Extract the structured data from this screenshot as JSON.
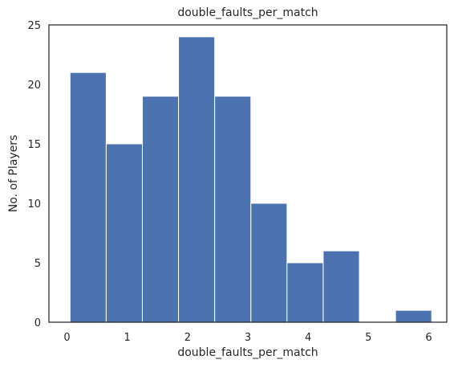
{
  "chart_data": {
    "type": "bar",
    "title": "double_faults_per_match",
    "xlabel": "double_faults_per_match",
    "ylabel": "No. of Players",
    "xlim": [
      -0.3,
      6.3
    ],
    "ylim": [
      0,
      25
    ],
    "xticks": [
      0,
      1,
      2,
      3,
      4,
      5,
      6
    ],
    "yticks": [
      0,
      5,
      10,
      15,
      20,
      25
    ],
    "bin_start": 0.05,
    "bin_width": 0.6,
    "values": [
      21,
      15,
      19,
      24,
      19,
      10,
      5,
      6,
      0,
      1
    ],
    "grid": false,
    "bar_color": "#4c72b0",
    "edge_color": "#ffffff"
  }
}
